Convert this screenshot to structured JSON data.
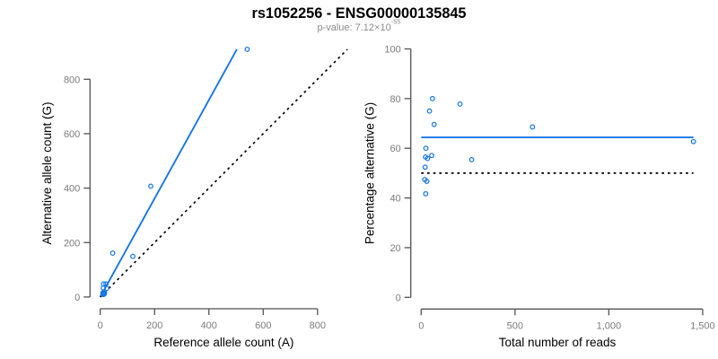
{
  "title": "rs1052256 - ENSG00000135845",
  "subtitle": {
    "base": "p-value: 7.12×10",
    "exponent": "-55"
  },
  "colors": {
    "point_blue": "#1776E4",
    "line_blue": "#1776E4",
    "line_black": "#000000",
    "axis_stroke": "#525252",
    "tick_label_gray": "#7b7b7b",
    "title_black": "#000000",
    "subtitle_gray": "#8a8a8a"
  },
  "chart_data": [
    {
      "type": "scatter",
      "name": "allele-counts-scatter",
      "xlabel": "Reference allele count (A)",
      "ylabel": "Alternative allele count (G)",
      "xticks": [
        0,
        200,
        400,
        600,
        800
      ],
      "xtick_labels": [
        "0",
        "200",
        "400",
        "600",
        "800"
      ],
      "yticks": [
        0,
        200,
        400,
        600,
        800
      ],
      "ytick_labels": [
        "0",
        "200",
        "400",
        "600",
        "800"
      ],
      "xlim": [
        0,
        910
      ],
      "ylim": [
        0,
        910
      ],
      "points": [
        [
          541,
          910
        ],
        [
          186,
          407
        ],
        [
          46,
          161
        ],
        [
          120,
          149
        ],
        [
          12,
          48
        ],
        [
          21,
          48
        ],
        [
          11,
          33
        ],
        [
          10,
          15
        ],
        [
          10,
          13
        ],
        [
          15,
          19
        ],
        [
          24,
          32
        ],
        [
          10,
          11
        ],
        [
          10,
          9
        ],
        [
          16,
          14
        ],
        [
          14,
          10
        ]
      ],
      "lines": [
        {
          "label": "ase-ratio-line",
          "style": "solid",
          "color": "blue",
          "x1": 0,
          "y1": 0,
          "x2": 503,
          "y2": 910
        },
        {
          "label": "identity-line",
          "style": "dotted",
          "color": "black",
          "x1": 0,
          "y1": 0,
          "x2": 910,
          "y2": 910
        }
      ]
    },
    {
      "type": "scatter",
      "name": "percentage-alternative-scatter",
      "xlabel": "Total number of reads",
      "ylabel": "Percentage alternative (G)",
      "xticks": [
        0,
        500,
        1000,
        1500
      ],
      "xtick_labels": [
        "0",
        "500",
        "1,000",
        "1,500"
      ],
      "yticks": [
        0,
        20,
        40,
        60,
        80,
        100
      ],
      "ytick_labels": [
        "0",
        "20",
        "40",
        "60",
        "80",
        "100"
      ],
      "xlim": [
        0,
        1451
      ],
      "ylim": [
        0,
        100
      ],
      "points": [
        [
          1451,
          62.7
        ],
        [
          593,
          68.6
        ],
        [
          207,
          77.8
        ],
        [
          269,
          55.4
        ],
        [
          60,
          80.0
        ],
        [
          69,
          69.6
        ],
        [
          44,
          75.0
        ],
        [
          25,
          60.0
        ],
        [
          23,
          56.5
        ],
        [
          34,
          55.9
        ],
        [
          56,
          57.1
        ],
        [
          21,
          52.4
        ],
        [
          19,
          47.4
        ],
        [
          30,
          46.7
        ],
        [
          24,
          41.7
        ]
      ],
      "lines": [
        {
          "label": "ase-ratio-line",
          "style": "solid",
          "color": "blue",
          "x1": 0,
          "y1": 64.4,
          "x2": 1451,
          "y2": 64.4
        },
        {
          "label": "null-50-percent-line",
          "style": "dotted",
          "color": "black",
          "x1": 0,
          "y1": 50,
          "x2": 1451,
          "y2": 50
        }
      ]
    }
  ]
}
